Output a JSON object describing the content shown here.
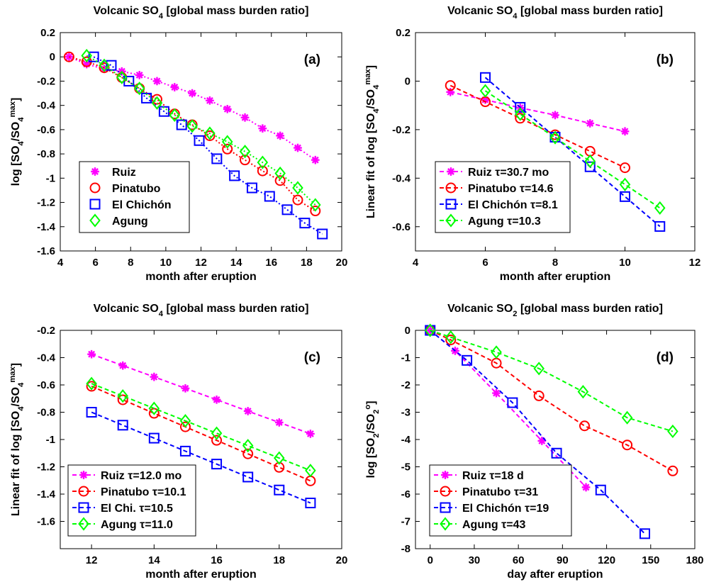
{
  "figure": {
    "panels": [
      {
        "id": "a",
        "title_parts": [
          "Volcanic SO",
          "4",
          " [global mass burden ratio]"
        ],
        "ylabel_parts": [
          [
            "log [SO",
            "n"
          ],
          [
            "4",
            "sub"
          ],
          [
            "/SO",
            "n"
          ],
          [
            "4",
            "sub"
          ],
          [
            "max",
            "sup"
          ],
          [
            "]",
            "n"
          ]
        ],
        "panel_letter": "(a)"
      },
      {
        "id": "b",
        "title_parts": [
          "Volcanic SO",
          "4",
          " [global mass burden ratio]"
        ],
        "ylabel_parts": [
          [
            "Linear fit of log [SO",
            "n"
          ],
          [
            "4",
            "sub"
          ],
          [
            "/SO",
            "n"
          ],
          [
            "4",
            "sub"
          ],
          [
            "max",
            "sup"
          ],
          [
            "]",
            "n"
          ]
        ],
        "panel_letter": "(b)"
      },
      {
        "id": "c",
        "title_parts": [
          "Volcanic SO",
          "4",
          " [global mass burden ratio]"
        ],
        "ylabel_parts": [
          [
            "Linear fit of log [SO",
            "n"
          ],
          [
            "4",
            "sub"
          ],
          [
            "/SO",
            "n"
          ],
          [
            "4",
            "sub"
          ],
          [
            "max",
            "sup"
          ],
          [
            "]",
            "n"
          ]
        ],
        "panel_letter": "(c)"
      },
      {
        "id": "d",
        "title_parts": [
          "Volcanic SO",
          "2",
          " [global mass burden ratio]"
        ],
        "ylabel_parts": [
          [
            "log [SO",
            "n"
          ],
          [
            "2",
            "sub"
          ],
          [
            "/SO",
            "n"
          ],
          [
            "2",
            "sub"
          ],
          [
            "o",
            "sup"
          ],
          [
            "]",
            "n"
          ]
        ],
        "panel_letter": "(d)"
      }
    ]
  },
  "chart_data": [
    {
      "type": "line",
      "xlabel": "month after eruption",
      "xlim": [
        4,
        20
      ],
      "ylim": [
        -1.6,
        0.2
      ],
      "xticks": [
        4,
        6,
        8,
        10,
        12,
        14,
        16,
        18,
        20
      ],
      "yticks": [
        0.2,
        0,
        -0.2,
        -0.4,
        -0.6,
        -0.8,
        -1,
        -1.2,
        -1.4,
        -1.6
      ],
      "ytick_labels": [
        "0.2",
        "0",
        "-0.2",
        "-0.4",
        "-0.6",
        "-0.8",
        "-1",
        "-1.2",
        "-1.4",
        "-1.6"
      ],
      "line_style": "dotted",
      "legend_position": "lower-left",
      "series": [
        {
          "name": "Ruiz",
          "color": "#ff00ff",
          "marker": "asterisk",
          "x": [
            4.5,
            5.5,
            6.5,
            7.5,
            8.5,
            9.5,
            10.5,
            11.5,
            12.5,
            13.5,
            14.5,
            15.5,
            16.5,
            17.5,
            18.5
          ],
          "y": [
            0,
            -0.06,
            -0.1,
            -0.12,
            -0.15,
            -0.2,
            -0.25,
            -0.3,
            -0.36,
            -0.43,
            -0.5,
            -0.59,
            -0.65,
            -0.75,
            -0.85
          ]
        },
        {
          "name": "Pinatubo",
          "color": "#ff0000",
          "marker": "circle",
          "x": [
            4.5,
            5.5,
            6.5,
            7.5,
            8.5,
            9.5,
            10.5,
            11.5,
            12.5,
            13.5,
            14.5,
            15.5,
            16.5,
            17.5,
            18.5
          ],
          "y": [
            0,
            -0.04,
            -0.09,
            -0.17,
            -0.26,
            -0.35,
            -0.47,
            -0.56,
            -0.65,
            -0.76,
            -0.85,
            -0.94,
            -1.02,
            -1.18,
            -1.27
          ]
        },
        {
          "name": "El Chichón",
          "color": "#0000ff",
          "marker": "square",
          "x": [
            5.9,
            6.9,
            7.9,
            8.9,
            9.9,
            10.9,
            11.9,
            12.9,
            13.9,
            14.9,
            15.9,
            16.9,
            17.9,
            18.9
          ],
          "y": [
            0,
            -0.07,
            -0.2,
            -0.34,
            -0.45,
            -0.56,
            -0.69,
            -0.84,
            -0.98,
            -1.08,
            -1.15,
            -1.26,
            -1.37,
            -1.46
          ]
        },
        {
          "name": "Agung",
          "color": "#00ff00",
          "marker": "diamond",
          "x": [
            5.5,
            6.5,
            7.5,
            8.5,
            9.5,
            10.5,
            11.5,
            12.5,
            13.5,
            14.5,
            15.5,
            16.5,
            17.5,
            18.5
          ],
          "y": [
            0.01,
            -0.07,
            -0.17,
            -0.26,
            -0.38,
            -0.48,
            -0.57,
            -0.63,
            -0.7,
            -0.78,
            -0.87,
            -0.96,
            -1.08,
            -1.22
          ]
        }
      ]
    },
    {
      "type": "line",
      "xlabel": "month after eruption",
      "xlim": [
        4,
        12
      ],
      "ylim": [
        -0.7,
        0.2
      ],
      "xticks": [
        4,
        6,
        8,
        10,
        12
      ],
      "yticks": [
        0.2,
        0,
        -0.2,
        -0.4,
        -0.6
      ],
      "ytick_labels": [
        "0.2",
        "0",
        "-0.2",
        "-0.4",
        "-0.6"
      ],
      "line_style": "dashed",
      "legend_position": "lower-left",
      "series": [
        {
          "name": "Ruiz τ=30.7 mo",
          "color": "#ff00ff",
          "marker": "asterisk",
          "x": [
            5,
            6,
            7,
            8,
            9,
            10
          ],
          "y": [
            -0.045,
            -0.077,
            -0.11,
            -0.14,
            -0.174,
            -0.207
          ]
        },
        {
          "name": "Pinatubo τ=14.6",
          "color": "#ff0000",
          "marker": "circle",
          "x": [
            5,
            6,
            7,
            8,
            9,
            10
          ],
          "y": [
            -0.018,
            -0.085,
            -0.153,
            -0.221,
            -0.289,
            -0.357
          ]
        },
        {
          "name": "El Chichón τ=8.1",
          "color": "#0000ff",
          "marker": "square",
          "x": [
            6,
            7,
            8,
            9,
            10,
            11
          ],
          "y": [
            0.015,
            -0.108,
            -0.231,
            -0.353,
            -0.476,
            -0.599
          ]
        },
        {
          "name": "Agung τ=10.3",
          "color": "#00ff00",
          "marker": "diamond",
          "x": [
            6,
            7,
            8,
            9,
            10,
            11
          ],
          "y": [
            -0.04,
            -0.136,
            -0.233,
            -0.33,
            -0.426,
            -0.523
          ]
        }
      ]
    },
    {
      "type": "line",
      "xlabel": "month after eruption",
      "xlim": [
        11,
        20
      ],
      "ylim": [
        -1.8,
        -0.2
      ],
      "xticks": [
        12,
        14,
        16,
        18,
        20
      ],
      "yticks": [
        -0.2,
        -0.4,
        -0.6,
        -0.8,
        -1,
        -1.2,
        -1.4,
        -1.6
      ],
      "ytick_labels": [
        "-0.2",
        "-0.4",
        "-0.6",
        "-0.8",
        "-1",
        "-1.2",
        "-1.4",
        "-1.6"
      ],
      "line_style": "dashed",
      "legend_position": "lower-left",
      "series": [
        {
          "name": "Ruiz τ=12.0 mo",
          "color": "#ff00ff",
          "marker": "asterisk",
          "x": [
            12,
            13,
            14,
            15,
            16,
            17,
            18,
            19
          ],
          "y": [
            -0.375,
            -0.458,
            -0.541,
            -0.625,
            -0.708,
            -0.792,
            -0.875,
            -0.958
          ]
        },
        {
          "name": "Pinatubo τ=10.1",
          "color": "#ff0000",
          "marker": "circle",
          "x": [
            12,
            13,
            14,
            15,
            16,
            17,
            18,
            19
          ],
          "y": [
            -0.61,
            -0.709,
            -0.808,
            -0.907,
            -1.006,
            -1.105,
            -1.204,
            -1.303
          ]
        },
        {
          "name": "El Chi. τ=10.5",
          "color": "#0000ff",
          "marker": "square",
          "x": [
            12,
            13,
            14,
            15,
            16,
            17,
            18,
            19
          ],
          "y": [
            -0.8,
            -0.895,
            -0.99,
            -1.085,
            -1.18,
            -1.275,
            -1.37,
            -1.465
          ]
        },
        {
          "name": "Agung τ=11.0",
          "color": "#00ff00",
          "marker": "diamond",
          "x": [
            12,
            13,
            14,
            15,
            16,
            17,
            18,
            19
          ],
          "y": [
            -0.59,
            -0.681,
            -0.772,
            -0.863,
            -0.954,
            -1.045,
            -1.136,
            -1.227
          ]
        }
      ]
    },
    {
      "type": "line",
      "xlabel": "day after eruption",
      "xlim": [
        -10,
        180
      ],
      "ylim": [
        -8,
        0
      ],
      "xticks": [
        0,
        30,
        60,
        90,
        120,
        150,
        180
      ],
      "yticks": [
        0,
        -1,
        -2,
        -3,
        -4,
        -5,
        -6,
        -7,
        -8
      ],
      "ytick_labels": [
        "0",
        "-1",
        "-2",
        "-3",
        "-4",
        "-5",
        "-6",
        "-7",
        "-8"
      ],
      "line_style": "dashed",
      "legend_position": "lower-left",
      "series": [
        {
          "name": "Ruiz τ=18 d",
          "color": "#ff00ff",
          "marker": "asterisk",
          "x": [
            0,
            17,
            45,
            76,
            106
          ],
          "y": [
            0,
            -0.75,
            -2.3,
            -4.05,
            -5.75
          ]
        },
        {
          "name": "Pinatubo τ=31",
          "color": "#ff0000",
          "marker": "circle",
          "x": [
            0,
            14,
            45,
            74,
            105,
            134,
            165
          ],
          "y": [
            0,
            -0.35,
            -1.2,
            -2.4,
            -3.5,
            -4.2,
            -5.15
          ]
        },
        {
          "name": "El Chichón τ=19",
          "color": "#0000ff",
          "marker": "square",
          "x": [
            0,
            25,
            56,
            86,
            116,
            146
          ],
          "y": [
            0,
            -1.1,
            -2.65,
            -4.5,
            -5.85,
            -7.45
          ]
        },
        {
          "name": "Agung τ=43",
          "color": "#00ff00",
          "marker": "diamond",
          "x": [
            0,
            14,
            45,
            74,
            104,
            134,
            165
          ],
          "y": [
            0,
            -0.25,
            -0.8,
            -1.4,
            -2.25,
            -3.2,
            -3.7
          ]
        }
      ]
    }
  ]
}
